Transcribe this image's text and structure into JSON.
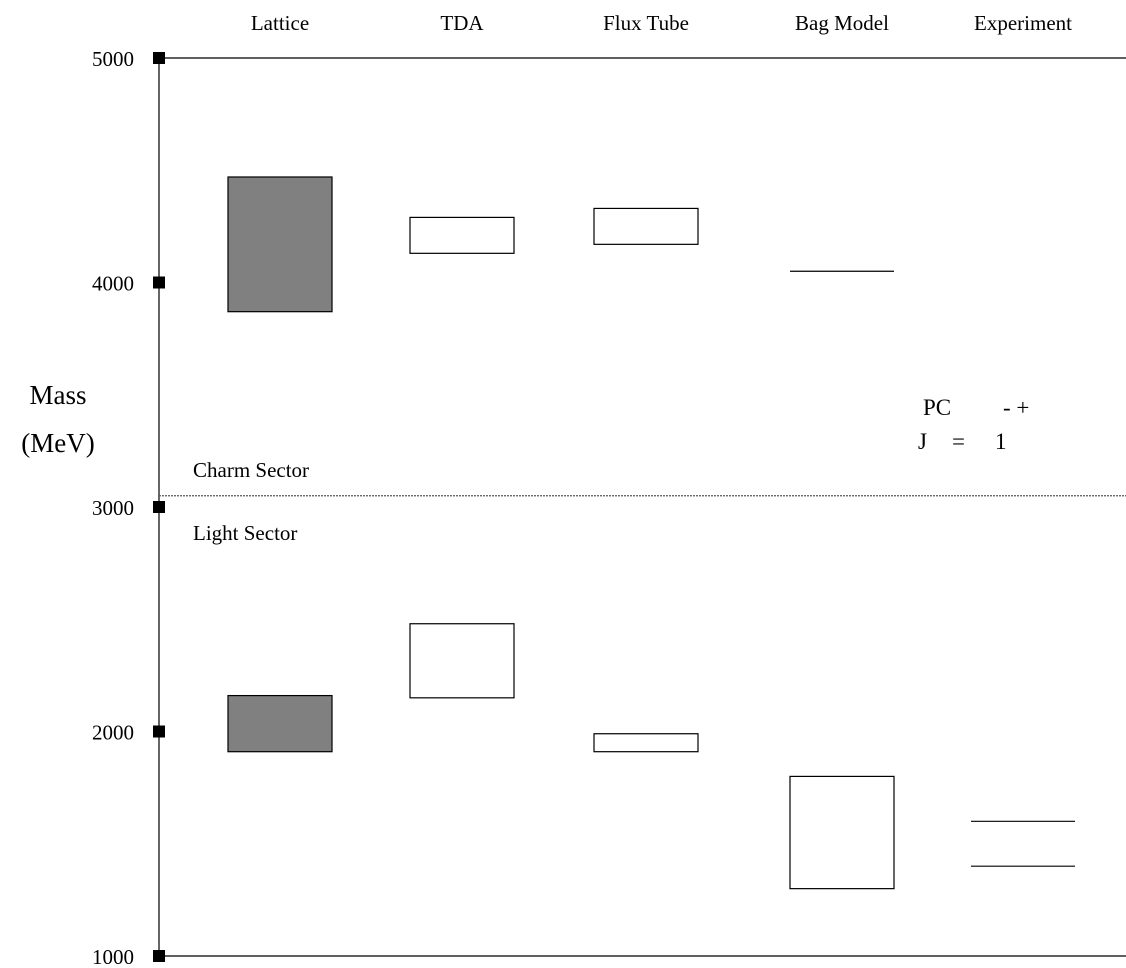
{
  "chart_data": {
    "type": "bar",
    "ylabel_lines": [
      "Mass",
      "(MeV)"
    ],
    "categories": [
      "Lattice",
      "TDA",
      "Flux Tube",
      "Bag Model",
      "Experiment"
    ],
    "y_ticks": [
      1000,
      2000,
      3000,
      4000,
      5000
    ],
    "ylim": [
      1000,
      5000
    ],
    "grid": false,
    "sector_divider_mass": 3050,
    "sectors": [
      {
        "label": "Charm Sector",
        "position": "above divider"
      },
      {
        "label": "Light Sector",
        "position": "below divider"
      }
    ],
    "quantum_numbers": {
      "pc": "PC",
      "pc_values": "- +",
      "j": "J",
      "equals": "=",
      "j_value": "1"
    },
    "ranges": [
      {
        "category": "Lattice",
        "sector": "charm",
        "low": 3870,
        "high": 4470,
        "filled": true
      },
      {
        "category": "TDA",
        "sector": "charm",
        "low": 4130,
        "high": 4290,
        "filled": false
      },
      {
        "category": "Flux Tube",
        "sector": "charm",
        "low": 4170,
        "high": 4330,
        "filled": false
      },
      {
        "category": "Lattice",
        "sector": "light",
        "low": 1910,
        "high": 2160,
        "filled": true
      },
      {
        "category": "TDA",
        "sector": "light",
        "low": 2150,
        "high": 2480,
        "filled": false
      },
      {
        "category": "Flux Tube",
        "sector": "light",
        "low": 1910,
        "high": 1990,
        "filled": false
      },
      {
        "category": "Bag Model",
        "sector": "light",
        "low": 1300,
        "high": 1800,
        "filled": false
      }
    ],
    "levels": [
      {
        "category": "Bag Model",
        "sector": "charm",
        "value": 4050
      },
      {
        "category": "Experiment",
        "sector": "light",
        "value": 1600
      },
      {
        "category": "Experiment",
        "sector": "light",
        "value": 1400
      }
    ],
    "colors": {
      "filled": "#808080",
      "outline": "#000000"
    }
  }
}
